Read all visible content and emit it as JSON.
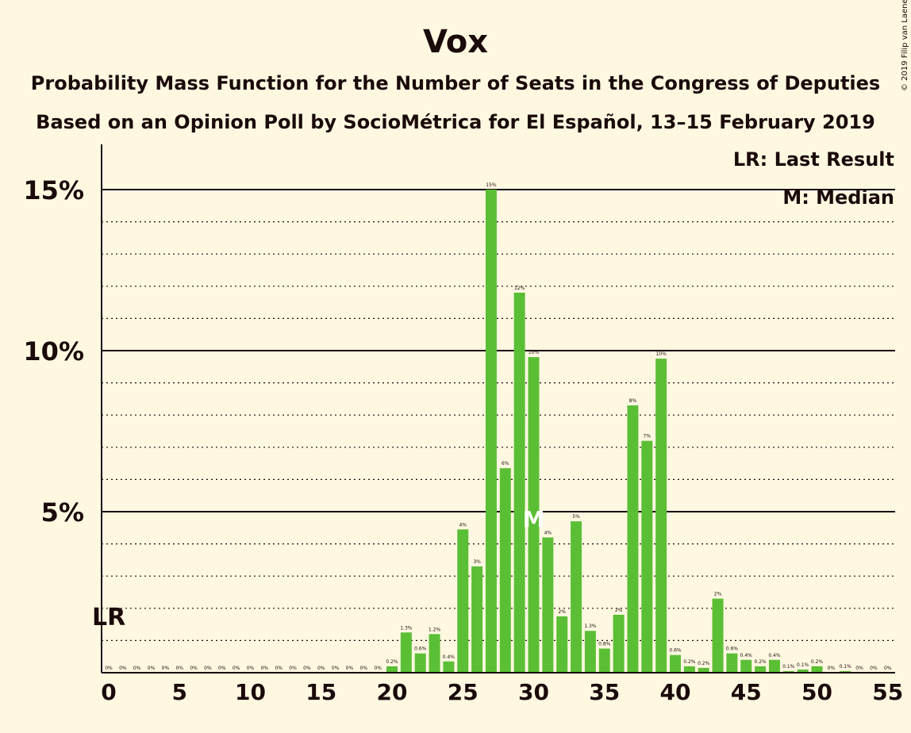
{
  "chart_data": {
    "type": "bar",
    "title": "Vox",
    "subtitle": "Probability Mass Function for the Number of Seats in the Congress of Deputies",
    "subtitle2": "Based on an Opinion Poll by SocioMétrica for El Español, 13–15 February 2019",
    "copyright": "© 2019 Filip van Laenen",
    "legend": [
      "LR: Last Result",
      "M: Median"
    ],
    "legend_position": "top-right",
    "last_result_label": "LR",
    "last_result_seats": 0,
    "median_label": "M",
    "median_seats": 30,
    "ylim": [
      0,
      16.3
    ],
    "yticks": [
      {
        "value": 5,
        "label": "5%"
      },
      {
        "value": 10,
        "label": "10%"
      },
      {
        "value": 15,
        "label": "15%"
      }
    ],
    "xlim": [
      0,
      55
    ],
    "xticks": [
      0,
      5,
      10,
      15,
      20,
      25,
      30,
      35,
      40,
      45,
      50,
      55
    ],
    "bar_color": "#5bbf35",
    "seats": [
      0,
      1,
      2,
      3,
      4,
      5,
      6,
      7,
      8,
      9,
      10,
      11,
      12,
      13,
      14,
      15,
      16,
      17,
      18,
      19,
      20,
      21,
      22,
      23,
      24,
      25,
      26,
      27,
      28,
      29,
      30,
      31,
      32,
      33,
      34,
      35,
      36,
      37,
      38,
      39,
      40,
      41,
      42,
      43,
      44,
      45,
      46,
      47,
      48,
      49,
      50,
      51,
      52,
      53,
      54,
      55
    ],
    "values": [
      0,
      0,
      0,
      0,
      0,
      0,
      0,
      0,
      0,
      0,
      0,
      0,
      0,
      0,
      0,
      0,
      0,
      0,
      0,
      0,
      0.2,
      1.25,
      0.6,
      1.2,
      0.35,
      4.45,
      3.3,
      15.0,
      6.35,
      11.8,
      9.8,
      4.2,
      1.75,
      4.7,
      1.3,
      0.75,
      1.8,
      8.3,
      7.2,
      9.75,
      0.55,
      0.2,
      0.15,
      2.3,
      0.6,
      0.4,
      0.2,
      0.4,
      0.05,
      0.1,
      0.2,
      0,
      0.05,
      0,
      0,
      0
    ],
    "value_labels": [
      "0%",
      "0%",
      "0%",
      "0%",
      "0%",
      "0%",
      "0%",
      "0%",
      "0%",
      "0%",
      "0%",
      "0%",
      "0%",
      "0%",
      "0%",
      "0%",
      "0%",
      "0%",
      "0%",
      "0%",
      "0.2%",
      "1.3%",
      "0.6%",
      "1.2%",
      "0.4%",
      "4%",
      "3%",
      "15%",
      "6%",
      "12%",
      "10%",
      "4%",
      "2%",
      "5%",
      "1.3%",
      "0.8%",
      "2%",
      "8%",
      "7%",
      "10%",
      "0.6%",
      "0.2%",
      "0.2%",
      "2%",
      "0.6%",
      "0.4%",
      "0.2%",
      "0.4%",
      "0.1%",
      "0.1%",
      "0.2%",
      "0%",
      "0.1%",
      "0%",
      "0%",
      "0%"
    ]
  }
}
